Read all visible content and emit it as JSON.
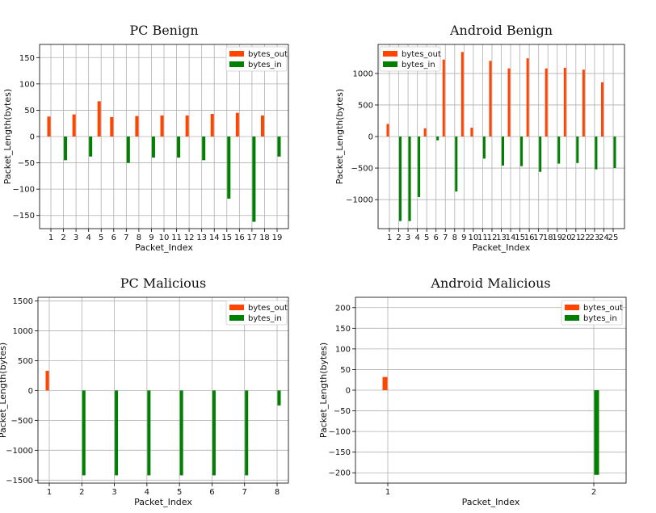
{
  "colors": {
    "bytes_out": "#ff4500",
    "bytes_in": "#008000",
    "grid": "#b0b0b0",
    "frame": "#000000"
  },
  "chart_data": [
    {
      "type": "bar",
      "title": "PC Benign",
      "xlabel": "Packet_Index",
      "ylabel": "Packet_Length(bytes)",
      "ylim": [
        -175,
        175
      ],
      "yticks": [
        -150,
        -100,
        -50,
        0,
        50,
        100,
        150
      ],
      "grid": true,
      "legend": "top-right",
      "categories": [
        "1",
        "2",
        "3",
        "4",
        "5",
        "6",
        "7",
        "8",
        "9",
        "10",
        "11",
        "12",
        "13",
        "14",
        "15",
        "16",
        "17",
        "18",
        "19"
      ],
      "series": [
        {
          "name": "bytes_out",
          "values": [
            38,
            0,
            42,
            0,
            67,
            37,
            0,
            39,
            0,
            40,
            0,
            40,
            0,
            43,
            0,
            45,
            0,
            40,
            0
          ]
        },
        {
          "name": "bytes_in",
          "values": [
            0,
            -45,
            0,
            -38,
            0,
            0,
            -50,
            0,
            -40,
            0,
            -40,
            0,
            -45,
            0,
            -118,
            0,
            -162,
            0,
            -38
          ]
        }
      ]
    },
    {
      "type": "bar",
      "title": "Android Benign",
      "xlabel": "Packet_Index",
      "ylabel": "Packet_Length(bytes)",
      "ylim": [
        -1460,
        1460
      ],
      "yticks": [
        -1000,
        -500,
        0,
        500,
        1000
      ],
      "grid": true,
      "legend": "top-left",
      "categories": [
        "1",
        "2",
        "3",
        "4",
        "5",
        "6",
        "7",
        "8",
        "9",
        "10",
        "11",
        "12",
        "13",
        "14",
        "15",
        "16",
        "17",
        "18",
        "19",
        "20",
        "21",
        "22",
        "23",
        "24",
        "25"
      ],
      "series": [
        {
          "name": "bytes_out",
          "values": [
            200,
            0,
            0,
            0,
            130,
            0,
            1220,
            0,
            1340,
            140,
            0,
            1200,
            0,
            1080,
            0,
            1240,
            0,
            1080,
            0,
            1090,
            0,
            1060,
            0,
            860,
            0
          ]
        },
        {
          "name": "bytes_in",
          "values": [
            0,
            -1340,
            -1340,
            -960,
            0,
            -60,
            0,
            -870,
            0,
            0,
            -350,
            0,
            -460,
            0,
            -470,
            0,
            -560,
            0,
            -430,
            0,
            -420,
            0,
            -520,
            0,
            -500
          ]
        }
      ]
    },
    {
      "type": "bar",
      "title": "PC Malicious",
      "xlabel": "Packet_Index",
      "ylabel": "Packet_Length(bytes)",
      "ylim": [
        -1550,
        1560
      ],
      "yticks": [
        -1500,
        -1000,
        -500,
        0,
        500,
        1000,
        1500
      ],
      "grid": true,
      "legend": "top-right",
      "categories": [
        "1",
        "2",
        "3",
        "4",
        "5",
        "6",
        "7",
        "8"
      ],
      "series": [
        {
          "name": "bytes_out",
          "values": [
            330,
            0,
            0,
            0,
            0,
            0,
            0,
            0
          ]
        },
        {
          "name": "bytes_in",
          "values": [
            0,
            -1420,
            -1420,
            -1420,
            -1420,
            -1420,
            -1420,
            -250
          ]
        }
      ]
    },
    {
      "type": "bar",
      "title": "Android Malicious",
      "xlabel": "Packet_Index",
      "ylabel": "Packet_Length(bytes)",
      "ylim": [
        -225,
        225
      ],
      "yticks": [
        -200,
        -150,
        -100,
        -50,
        0,
        50,
        100,
        150,
        200
      ],
      "grid": true,
      "legend": "top-right",
      "categories": [
        "1",
        "2"
      ],
      "series": [
        {
          "name": "bytes_out",
          "values": [
            32,
            0
          ]
        },
        {
          "name": "bytes_in",
          "values": [
            0,
            -205
          ]
        }
      ]
    }
  ]
}
